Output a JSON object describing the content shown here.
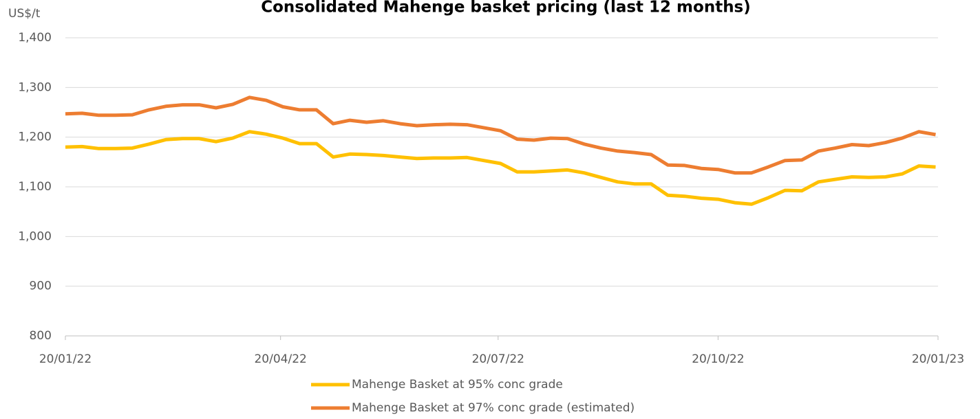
{
  "chart_data": {
    "type": "line",
    "title": "Consolidated Mahenge basket pricing (last 12 months)",
    "y_label": "US$/t",
    "x": [
      "2022-01-20",
      "2022-01-27",
      "2022-02-03",
      "2022-02-10",
      "2022-02-17",
      "2022-02-24",
      "2022-03-03",
      "2022-03-10",
      "2022-03-17",
      "2022-03-24",
      "2022-03-31",
      "2022-04-07",
      "2022-04-14",
      "2022-04-21",
      "2022-04-28",
      "2022-05-05",
      "2022-05-12",
      "2022-05-19",
      "2022-05-26",
      "2022-06-02",
      "2022-06-09",
      "2022-06-16",
      "2022-06-23",
      "2022-06-30",
      "2022-07-07",
      "2022-07-14",
      "2022-07-21",
      "2022-07-28",
      "2022-08-04",
      "2022-08-11",
      "2022-08-18",
      "2022-08-25",
      "2022-09-01",
      "2022-09-08",
      "2022-09-15",
      "2022-09-22",
      "2022-09-29",
      "2022-10-06",
      "2022-10-13",
      "2022-10-20",
      "2022-10-27",
      "2022-11-03",
      "2022-11-10",
      "2022-11-17",
      "2022-11-24",
      "2022-12-01",
      "2022-12-08",
      "2022-12-15",
      "2022-12-22",
      "2022-12-29",
      "2023-01-05",
      "2023-01-12",
      "2023-01-19"
    ],
    "series": [
      {
        "name": "Mahenge Basket at 95% conc grade",
        "color": "#ffc000",
        "values": [
          1180,
          1181,
          1177,
          1177,
          1178,
          1186,
          1195,
          1197,
          1197,
          1191,
          1198,
          1211,
          1206,
          1198,
          1187,
          1187,
          1160,
          1166,
          1165,
          1163,
          1160,
          1157,
          1158,
          1158,
          1159,
          1153,
          1147,
          1130,
          1130,
          1132,
          1134,
          1128,
          1119,
          1110,
          1106,
          1106,
          1083,
          1081,
          1077,
          1075,
          1068,
          1065,
          1078,
          1093,
          1092,
          1110,
          1115,
          1120,
          1119,
          1120,
          1126,
          1142,
          1140
        ]
      },
      {
        "name": "Mahenge Basket at 97% conc grade (estimated)",
        "color": "#ed7d31",
        "values": [
          1247,
          1248,
          1244,
          1244,
          1245,
          1255,
          1262,
          1265,
          1265,
          1259,
          1266,
          1280,
          1274,
          1261,
          1255,
          1255,
          1227,
          1234,
          1230,
          1233,
          1227,
          1223,
          1225,
          1226,
          1225,
          1219,
          1213,
          1196,
          1194,
          1198,
          1197,
          1186,
          1178,
          1172,
          1169,
          1165,
          1144,
          1143,
          1137,
          1135,
          1128,
          1128,
          1140,
          1153,
          1154,
          1172,
          1178,
          1185,
          1183,
          1189,
          1198,
          1211,
          1205
        ]
      }
    ],
    "xlim": [
      "2022-01-20",
      "2023-01-20"
    ],
    "xticks": [
      {
        "value": "2022-01-20",
        "label": "20/01/22"
      },
      {
        "value": "2022-04-20",
        "label": "20/04/22"
      },
      {
        "value": "2022-07-20",
        "label": "20/07/22"
      },
      {
        "value": "2022-10-20",
        "label": "20/10/22"
      },
      {
        "value": "2023-01-20",
        "label": "20/01/23"
      }
    ],
    "ylim": [
      800,
      1400
    ],
    "yticks": [
      800,
      900,
      {
        "value": 1000,
        "label": "1,000"
      },
      {
        "value": 1100,
        "label": "1,100"
      },
      {
        "value": 1200,
        "label": "1,200"
      },
      {
        "value": 1300,
        "label": "1,300"
      },
      {
        "value": 1400,
        "label": "1,400"
      }
    ],
    "grid": true,
    "legend": "bottom"
  }
}
